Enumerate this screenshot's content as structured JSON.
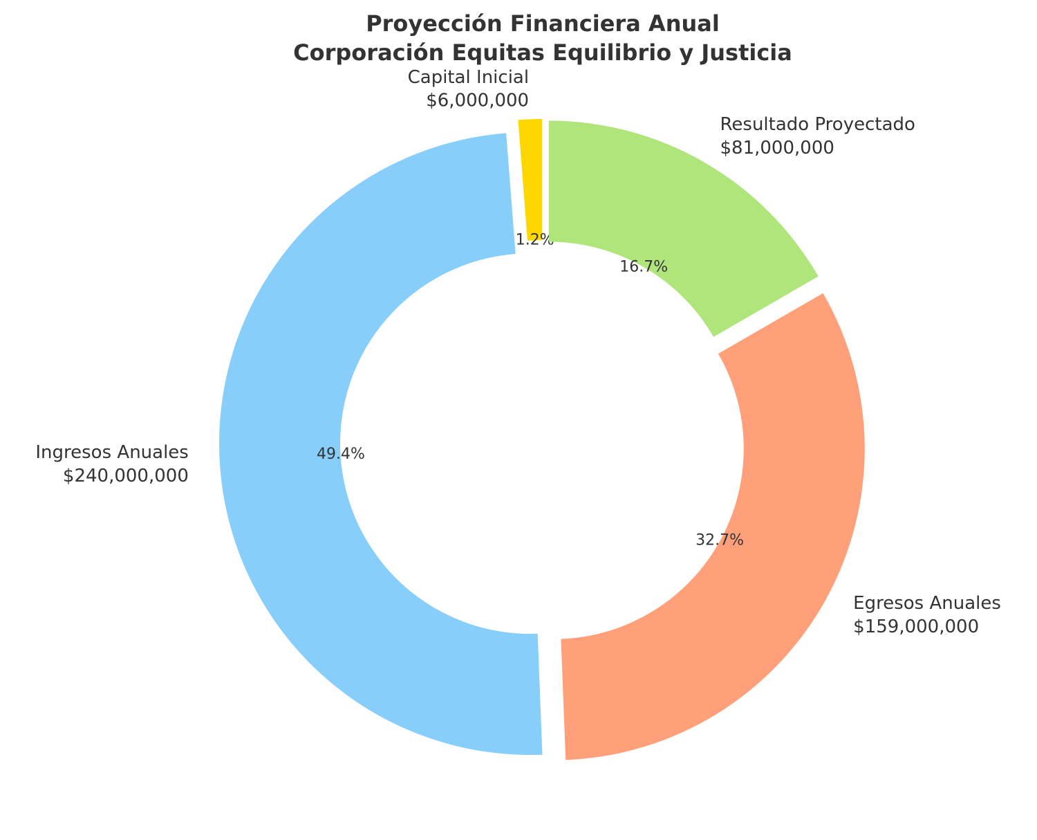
{
  "chart_data": {
    "type": "donut",
    "title": "Proyección Financiera Anual",
    "subtitle": "Corporación Equitas Equilibrio y Justicia",
    "categories": [
      "Capital Inicial",
      "Ingresos Anuales",
      "Egresos Anuales",
      "Resultado Proyectado"
    ],
    "values": [
      6000000,
      240000000,
      159000000,
      81000000
    ],
    "value_labels": [
      "$6,000,000",
      "$240,000,000",
      "$159,000,000",
      "$81,000,000"
    ],
    "percent_labels": [
      "1.2%",
      "49.4%",
      "32.7%",
      "16.7%"
    ],
    "colors": [
      "#FFD700",
      "#87CEFA",
      "#FFA07A",
      "#B0E57C"
    ]
  }
}
